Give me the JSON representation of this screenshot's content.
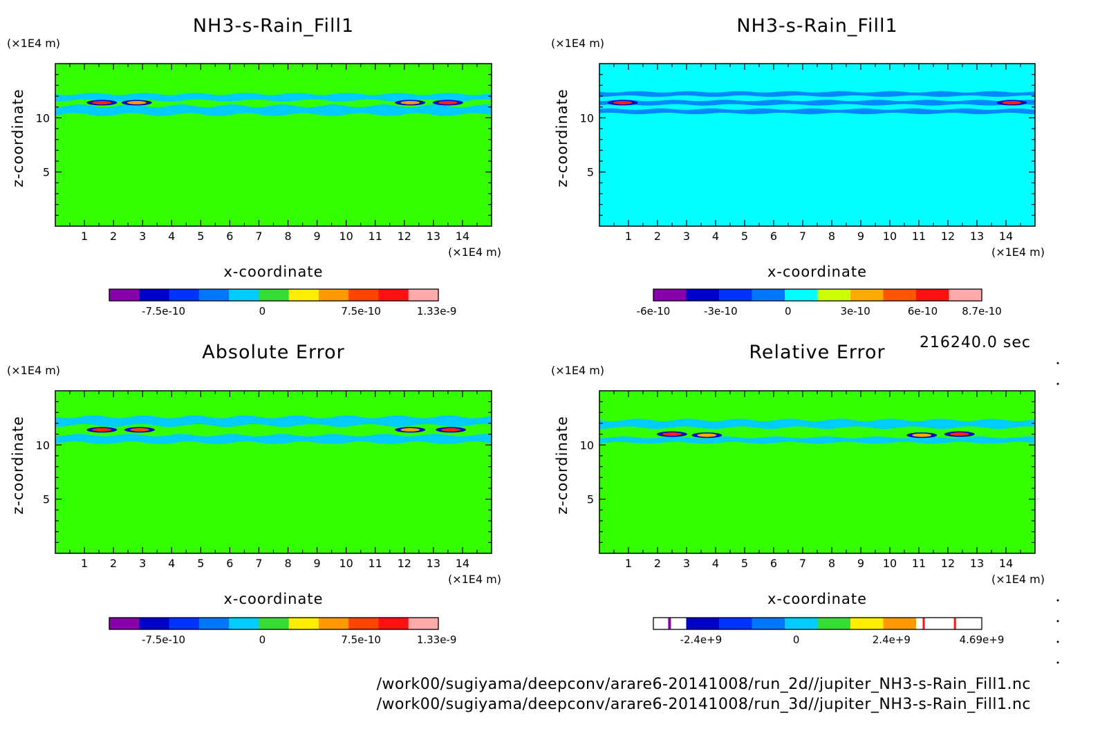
{
  "chart_data": [
    {
      "type": "heatmap",
      "title": "NH3-s-Rain_Fill1",
      "xlabel": "x-coordinate",
      "ylabel": "z-coordinate",
      "x_unit": "(×1E4 m)",
      "z_unit": "(×1E4 m)",
      "x_ticks": [
        1,
        2,
        3,
        4,
        5,
        6,
        7,
        8,
        9,
        10,
        11,
        12,
        13,
        14
      ],
      "z_ticks": [
        5,
        10
      ],
      "xlim": [
        0,
        15
      ],
      "zlim": [
        0,
        15
      ],
      "background_color": "#33ff00",
      "colorbar": {
        "colors": [
          "#8800aa",
          "#0000cc",
          "#0033ff",
          "#0077ff",
          "#00ccff",
          "#33dd33",
          "#ffee00",
          "#ff9900",
          "#ff4400",
          "#ff1111",
          "#ffaaaa"
        ],
        "labels": [
          "-7.5e-10",
          "0",
          "7.5e-10",
          "1.33e-9"
        ],
        "label_fracs": [
          0.165,
          0.465,
          0.765,
          0.995
        ]
      },
      "layers": [
        {
          "color": "#00ccff",
          "z": [
            11.6,
            12.2
          ]
        },
        {
          "color": "#00ccff",
          "z": [
            10.3,
            11.1
          ]
        }
      ],
      "spots": [
        {
          "x": 1.6,
          "z": 11.4,
          "color": "#ff2200"
        },
        {
          "x": 2.8,
          "z": 11.4,
          "color": "#ff9900"
        },
        {
          "x": 12.2,
          "z": 11.4,
          "color": "#ff9900"
        },
        {
          "x": 13.5,
          "z": 11.4,
          "color": "#ff2200"
        }
      ]
    },
    {
      "type": "heatmap",
      "title": "NH3-s-Rain_Fill1",
      "xlabel": "x-coordinate",
      "ylabel": "z-coordinate",
      "x_unit": "(×1E4 m)",
      "z_unit": "(×1E4 m)",
      "x_ticks": [
        1,
        2,
        3,
        4,
        5,
        6,
        7,
        8,
        9,
        10,
        11,
        12,
        13,
        14
      ],
      "z_ticks": [
        5,
        10
      ],
      "xlim": [
        0,
        15
      ],
      "zlim": [
        0,
        15
      ],
      "background_color": "#00ffff",
      "colorbar": {
        "colors": [
          "#8800aa",
          "#0000cc",
          "#0033ff",
          "#0077ff",
          "#00ffff",
          "#ccff00",
          "#ffaa00",
          "#ff5500",
          "#ff1111",
          "#ffaaaa"
        ],
        "labels": [
          "-6e-10",
          "-3e-10",
          "0",
          "3e-10",
          "6e-10",
          "8.7e-10"
        ],
        "label_fracs": [
          0.0,
          0.205,
          0.41,
          0.615,
          0.82,
          1.0
        ]
      },
      "layers": [
        {
          "color": "#0088ff",
          "z": [
            12.0,
            12.4
          ]
        },
        {
          "color": "#0088ff",
          "z": [
            11.2,
            11.6
          ]
        },
        {
          "color": "#0088ff",
          "z": [
            10.4,
            10.8
          ]
        }
      ],
      "spots": [
        {
          "x": 0.8,
          "z": 11.4,
          "color": "#ff2200"
        },
        {
          "x": 14.2,
          "z": 11.4,
          "color": "#ff2200"
        }
      ]
    },
    {
      "type": "heatmap",
      "title": "Absolute Error",
      "xlabel": "x-coordinate",
      "ylabel": "z-coordinate",
      "x_unit": "(×1E4 m)",
      "z_unit": "(×1E4 m)",
      "x_ticks": [
        1,
        2,
        3,
        4,
        5,
        6,
        7,
        8,
        9,
        10,
        11,
        12,
        13,
        14
      ],
      "z_ticks": [
        5,
        10
      ],
      "xlim": [
        0,
        15
      ],
      "zlim": [
        0,
        15
      ],
      "background_color": "#33ff00",
      "colorbar": {
        "colors": [
          "#8800aa",
          "#0000cc",
          "#0033ff",
          "#0077ff",
          "#00ccff",
          "#33dd33",
          "#ffee00",
          "#ff9900",
          "#ff4400",
          "#ff1111",
          "#ffaaaa"
        ],
        "labels": [
          "-7.5e-10",
          "0",
          "7.5e-10",
          "1.33e-9"
        ],
        "label_fracs": [
          0.165,
          0.465,
          0.765,
          0.995
        ]
      },
      "layers": [
        {
          "color": "#00ccff",
          "z": [
            11.8,
            12.6
          ]
        },
        {
          "color": "#00ccff",
          "z": [
            10.2,
            10.9
          ]
        }
      ],
      "spots": [
        {
          "x": 1.6,
          "z": 11.4,
          "color": "#ff2200"
        },
        {
          "x": 2.9,
          "z": 11.4,
          "color": "#ff4400"
        },
        {
          "x": 12.2,
          "z": 11.4,
          "color": "#ff9900"
        },
        {
          "x": 13.6,
          "z": 11.4,
          "color": "#ff2200"
        }
      ]
    },
    {
      "type": "heatmap",
      "title": "Relative Error",
      "xlabel": "x-coordinate",
      "ylabel": "z-coordinate",
      "x_unit": "(×1E4 m)",
      "z_unit": "(×1E4 m)",
      "x_ticks": [
        1,
        2,
        3,
        4,
        5,
        6,
        7,
        8,
        9,
        10,
        11,
        12,
        13,
        14
      ],
      "z_ticks": [
        5,
        10
      ],
      "xlim": [
        0,
        15
      ],
      "zlim": [
        0,
        15
      ],
      "background_color": "#33ff00",
      "colorbar": {
        "colors": [
          "#ffffff",
          "#0000cc",
          "#0033ff",
          "#0077ff",
          "#00ccff",
          "#33dd33",
          "#ffee00",
          "#ff9900",
          "#ffffff",
          "#ffffff"
        ],
        "labels": [
          "-2.4e+9",
          "0",
          "2.4e+9",
          "4.69e+9"
        ],
        "label_fracs": [
          0.145,
          0.435,
          0.725,
          1.0
        ]
      },
      "layers": [
        {
          "color": "#00ccff",
          "z": [
            11.6,
            12.3
          ]
        },
        {
          "color": "#00ccff",
          "z": [
            10.2,
            10.7
          ]
        }
      ],
      "spots": [
        {
          "x": 2.5,
          "z": 11.0,
          "color": "#ff2200"
        },
        {
          "x": 3.7,
          "z": 10.9,
          "color": "#ffaa00"
        },
        {
          "x": 11.1,
          "z": 10.9,
          "color": "#ffaa00"
        },
        {
          "x": 12.4,
          "z": 11.0,
          "color": "#ff2200"
        }
      ]
    }
  ],
  "time_label": "216240.0 sec",
  "file_paths": [
    "/work00/sugiyama/deepconv/arare6-20141008/run_2d//jupiter_NH3-s-Rain_Fill1.nc",
    "/work00/sugiyama/deepconv/arare6-20141008/run_3d//jupiter_NH3-s-Rain_Fill1.nc"
  ]
}
